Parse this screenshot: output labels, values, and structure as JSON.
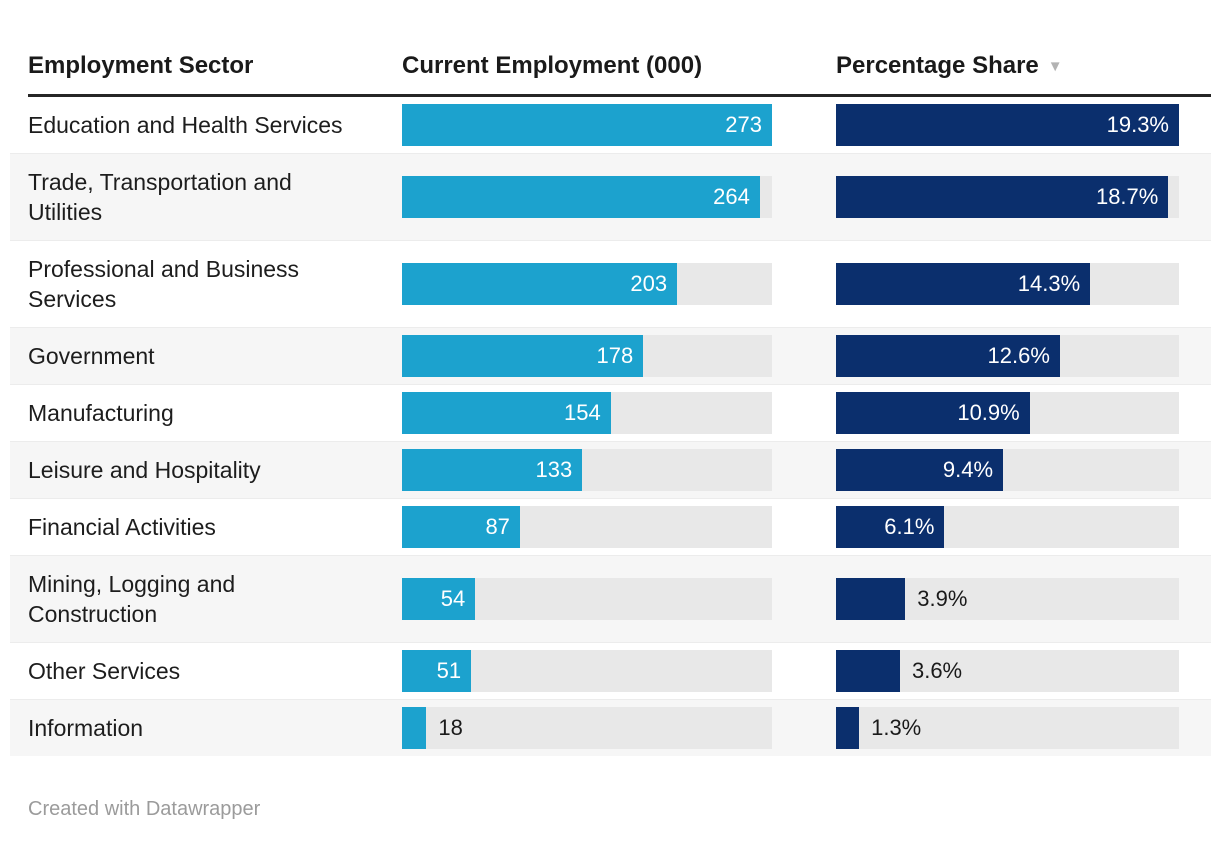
{
  "header": {
    "columns": [
      {
        "id": "sector",
        "label": "Employment Sector"
      },
      {
        "id": "employment",
        "label": "Current Employment (000)"
      },
      {
        "id": "share",
        "label": "Percentage Share",
        "sort_icon": "▼",
        "sort_direction": "descending"
      }
    ]
  },
  "chart_data": {
    "type": "table",
    "columns": [
      "Employment Sector",
      "Current Employment (000)",
      "Percentage Share"
    ],
    "bar_columns": [
      "Current Employment (000)",
      "Percentage Share"
    ],
    "sort": {
      "column": "Percentage Share",
      "direction": "desc"
    },
    "employment_axis_max": 273,
    "share_axis_max": 19.3,
    "rows": [
      {
        "sector": "Education and Health Services",
        "employment": 273,
        "employment_label": "273",
        "share": 19.3,
        "share_label": "19.3%"
      },
      {
        "sector": "Trade, Transportation and Utilities",
        "employment": 264,
        "employment_label": "264",
        "share": 18.7,
        "share_label": "18.7%"
      },
      {
        "sector": "Professional and Business Services",
        "employment": 203,
        "employment_label": "203",
        "share": 14.3,
        "share_label": "14.3%"
      },
      {
        "sector": "Government",
        "employment": 178,
        "employment_label": "178",
        "share": 12.6,
        "share_label": "12.6%"
      },
      {
        "sector": "Manufacturing",
        "employment": 154,
        "employment_label": "154",
        "share": 10.9,
        "share_label": "10.9%"
      },
      {
        "sector": "Leisure and Hospitality",
        "employment": 133,
        "employment_label": "133",
        "share": 9.4,
        "share_label": "9.4%"
      },
      {
        "sector": "Financial Activities",
        "employment": 87,
        "employment_label": "87",
        "share": 6.1,
        "share_label": "6.1%"
      },
      {
        "sector": "Mining, Logging and Construction",
        "employment": 54,
        "employment_label": "54",
        "share": 3.9,
        "share_label": "3.9%"
      },
      {
        "sector": "Other Services",
        "employment": 51,
        "employment_label": "51",
        "share": 3.6,
        "share_label": "3.6%"
      },
      {
        "sector": "Information",
        "employment": 18,
        "employment_label": "18",
        "share": 1.3,
        "share_label": "1.3%"
      }
    ]
  },
  "colors": {
    "employment_bar": "#1CA2CE",
    "share_bar": "#0B2F6D",
    "bar_track": "#E8E8E8",
    "row_stripe": "#F6F6F6",
    "label_inside": "#FFFFFF",
    "label_outside": "#1A1A1A"
  },
  "footer": {
    "credit": "Created with Datawrapper"
  }
}
